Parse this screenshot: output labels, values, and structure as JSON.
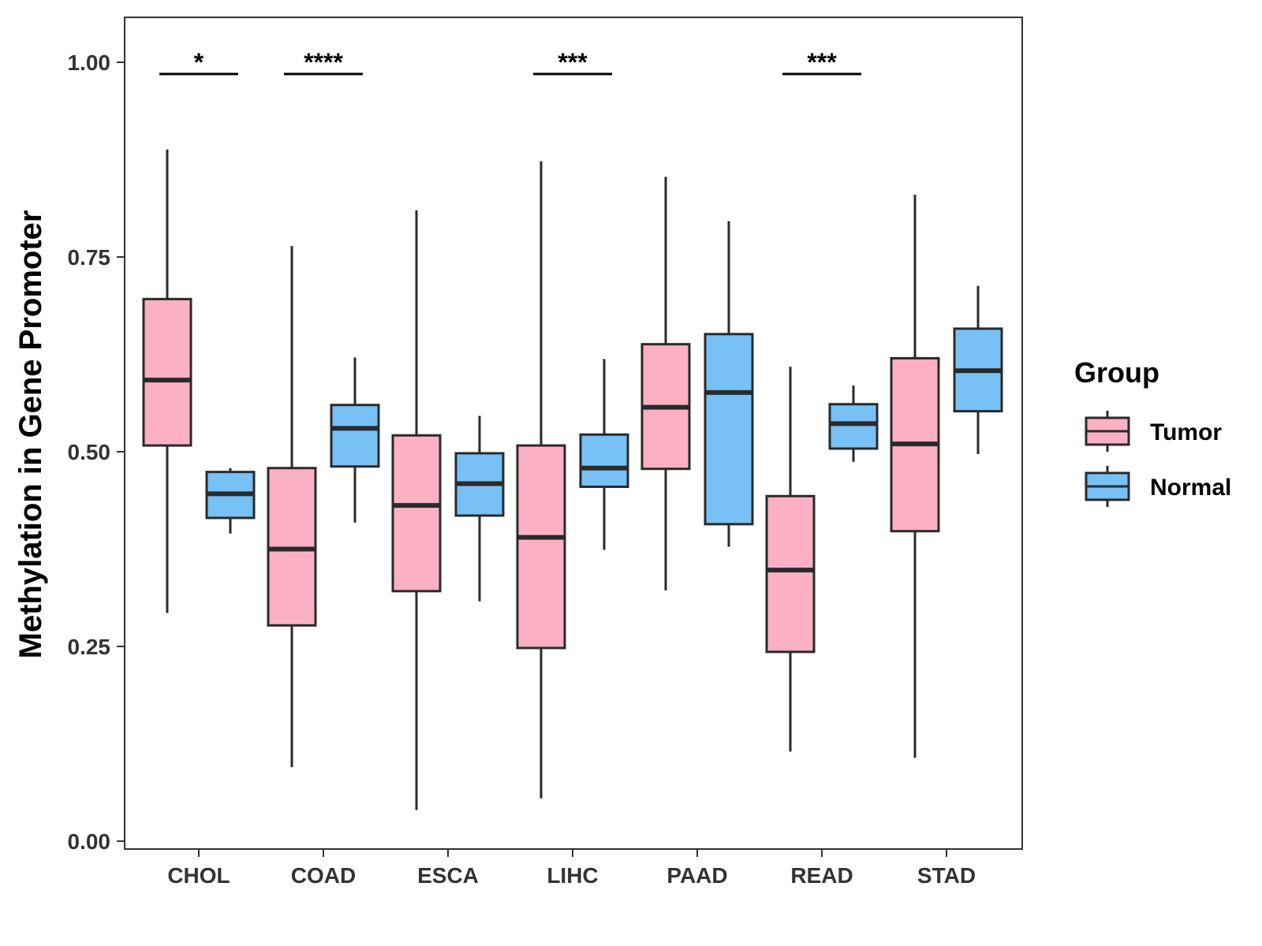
{
  "chart_data": {
    "type": "boxplot",
    "title": "",
    "xlabel": "",
    "ylabel": "Methylation in Gene Promoter",
    "ylim": [
      -0.04,
      1.06
    ],
    "yticks": [
      0.0,
      0.25,
      0.5,
      0.75,
      1.0
    ],
    "ytick_labels": [
      "0.00",
      "0.25",
      "0.50",
      "0.75",
      "1.00"
    ],
    "categories": [
      "CHOL",
      "COAD",
      "ESCA",
      "LIHC",
      "PAAD",
      "READ",
      "STAD"
    ],
    "legend": {
      "title": "Group",
      "position": "right",
      "entries": [
        {
          "name": "Tumor",
          "color": "#fbb1c3"
        },
        {
          "name": "Normal",
          "color": "#78c1f7"
        }
      ]
    },
    "series": [
      {
        "name": "Tumor",
        "color": "#fbb1c3",
        "boxes": [
          {
            "category": "CHOL",
            "min": 0.293,
            "q1": 0.508,
            "median": 0.592,
            "q3": 0.696,
            "max": 0.888
          },
          {
            "category": "COAD",
            "min": 0.095,
            "q1": 0.277,
            "median": 0.375,
            "q3": 0.479,
            "max": 0.764
          },
          {
            "category": "ESCA",
            "min": 0.04,
            "q1": 0.321,
            "median": 0.431,
            "q3": 0.521,
            "max": 0.81
          },
          {
            "category": "LIHC",
            "min": 0.055,
            "q1": 0.248,
            "median": 0.39,
            "q3": 0.508,
            "max": 0.873
          },
          {
            "category": "PAAD",
            "min": 0.322,
            "q1": 0.478,
            "median": 0.557,
            "q3": 0.638,
            "max": 0.853
          },
          {
            "category": "READ",
            "min": 0.115,
            "q1": 0.243,
            "median": 0.348,
            "q3": 0.443,
            "max": 0.609
          },
          {
            "category": "STAD",
            "min": 0.107,
            "q1": 0.398,
            "median": 0.51,
            "q3": 0.62,
            "max": 0.83
          }
        ]
      },
      {
        "name": "Normal",
        "color": "#78c1f7",
        "boxes": [
          {
            "category": "CHOL",
            "min": 0.395,
            "q1": 0.415,
            "median": 0.446,
            "q3": 0.474,
            "max": 0.479
          },
          {
            "category": "COAD",
            "min": 0.409,
            "q1": 0.481,
            "median": 0.53,
            "q3": 0.56,
            "max": 0.621
          },
          {
            "category": "ESCA",
            "min": 0.308,
            "q1": 0.418,
            "median": 0.459,
            "q3": 0.498,
            "max": 0.546
          },
          {
            "category": "LIHC",
            "min": 0.374,
            "q1": 0.455,
            "median": 0.479,
            "q3": 0.522,
            "max": 0.619
          },
          {
            "category": "PAAD",
            "min": 0.378,
            "q1": 0.407,
            "median": 0.576,
            "q3": 0.651,
            "max": 0.796
          },
          {
            "category": "READ",
            "min": 0.487,
            "q1": 0.504,
            "median": 0.536,
            "q3": 0.561,
            "max": 0.585
          },
          {
            "category": "STAD",
            "min": 0.497,
            "q1": 0.552,
            "median": 0.604,
            "q3": 0.658,
            "max": 0.713
          }
        ]
      }
    ],
    "annotations": [
      {
        "category": "CHOL",
        "label": "*"
      },
      {
        "category": "COAD",
        "label": "****"
      },
      {
        "category": "LIHC",
        "label": "***"
      },
      {
        "category": "READ",
        "label": "***"
      }
    ],
    "grid": false
  }
}
